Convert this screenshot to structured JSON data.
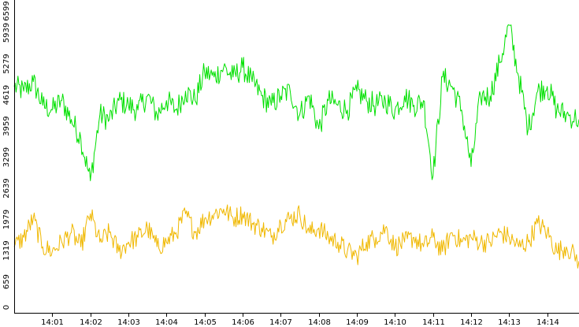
{
  "chart_data": {
    "type": "line",
    "title": "",
    "xlabel": "",
    "ylabel": "",
    "grid": false,
    "legend": "none",
    "ylim": [
      0,
      6599
    ],
    "yticks": [
      0,
      659,
      1319,
      1979,
      2639,
      3299,
      3959,
      4619,
      5279,
      5939,
      6599
    ],
    "xlim": [
      "14:00:00",
      "14:14:50"
    ],
    "xticks": [
      "14:01",
      "14:02",
      "14:03",
      "14:04",
      "14:05",
      "14:06",
      "14:07",
      "14:08",
      "14:09",
      "14:10",
      "14:11",
      "14:12",
      "14:13",
      "14:14"
    ],
    "series": [
      {
        "color": "#00e000",
        "x": [
          "14:00:00",
          "14:00:15",
          "14:00:30",
          "14:00:45",
          "14:01:00",
          "14:01:15",
          "14:01:30",
          "14:01:45",
          "14:02:00",
          "14:02:15",
          "14:02:30",
          "14:02:45",
          "14:03:00",
          "14:03:15",
          "14:03:30",
          "14:03:45",
          "14:04:00",
          "14:04:15",
          "14:04:30",
          "14:04:45",
          "14:05:00",
          "14:05:15",
          "14:05:30",
          "14:05:45",
          "14:06:00",
          "14:06:15",
          "14:06:30",
          "14:06:45",
          "14:07:00",
          "14:07:15",
          "14:07:30",
          "14:07:45",
          "14:08:00",
          "14:08:15",
          "14:08:30",
          "14:08:45",
          "14:09:00",
          "14:09:15",
          "14:09:30",
          "14:09:45",
          "14:10:00",
          "14:10:15",
          "14:10:30",
          "14:10:45",
          "14:11:00",
          "14:11:15",
          "14:11:30",
          "14:11:45",
          "14:12:00",
          "14:12:15",
          "14:12:30",
          "14:12:45",
          "14:13:00",
          "14:13:15",
          "14:13:30",
          "14:13:45",
          "14:14:00",
          "14:14:15",
          "14:14:30",
          "14:14:50"
        ],
        "y": [
          4800,
          4700,
          4900,
          4400,
          4300,
          4500,
          4100,
          3700,
          2800,
          4200,
          4100,
          4500,
          4400,
          4300,
          4600,
          4200,
          4500,
          4300,
          4700,
          4500,
          5100,
          5000,
          5200,
          5000,
          5200,
          4900,
          4600,
          4400,
          4600,
          4700,
          4200,
          4600,
          3900,
          4500,
          4400,
          4300,
          4700,
          4500,
          4400,
          4500,
          4300,
          4600,
          4400,
          4500,
          2900,
          5000,
          4800,
          4300,
          3100,
          4600,
          4600,
          5300,
          6100,
          5000,
          3900,
          4700,
          4800,
          4300,
          4200,
          4100
        ]
      },
      {
        "color": "#f0b800",
        "x": [
          "14:00:00",
          "14:00:15",
          "14:00:30",
          "14:00:45",
          "14:01:00",
          "14:01:15",
          "14:01:30",
          "14:01:45",
          "14:02:00",
          "14:02:15",
          "14:02:30",
          "14:02:45",
          "14:03:00",
          "14:03:15",
          "14:03:30",
          "14:03:45",
          "14:04:00",
          "14:04:15",
          "14:04:30",
          "14:04:45",
          "14:05:00",
          "14:05:15",
          "14:05:30",
          "14:05:45",
          "14:06:00",
          "14:06:15",
          "14:06:30",
          "14:06:45",
          "14:07:00",
          "14:07:15",
          "14:07:30",
          "14:07:45",
          "14:08:00",
          "14:08:15",
          "14:08:30",
          "14:08:45",
          "14:09:00",
          "14:09:15",
          "14:09:30",
          "14:09:45",
          "14:10:00",
          "14:10:15",
          "14:10:30",
          "14:10:45",
          "14:11:00",
          "14:11:15",
          "14:11:30",
          "14:11:45",
          "14:12:00",
          "14:12:15",
          "14:12:30",
          "14:12:45",
          "14:13:00",
          "14:13:15",
          "14:13:30",
          "14:13:45",
          "14:14:00",
          "14:14:15",
          "14:14:30",
          "14:14:50"
        ],
        "y": [
          1400,
          1600,
          2000,
          1400,
          1300,
          1500,
          1700,
          1400,
          2100,
          1500,
          1700,
          1300,
          1500,
          1600,
          1800,
          1400,
          1500,
          1700,
          2100,
          1700,
          2000,
          2100,
          2200,
          2000,
          2100,
          1900,
          1800,
          1600,
          1900,
          2000,
          2100,
          1700,
          1800,
          1600,
          1500,
          1300,
          1200,
          1500,
          1600,
          1800,
          1400,
          1500,
          1600,
          1400,
          1600,
          1300,
          1700,
          1500,
          1600,
          1500,
          1500,
          1700,
          1600,
          1400,
          1500,
          1900,
          1700,
          1300,
          1400,
          1100
        ]
      }
    ]
  }
}
